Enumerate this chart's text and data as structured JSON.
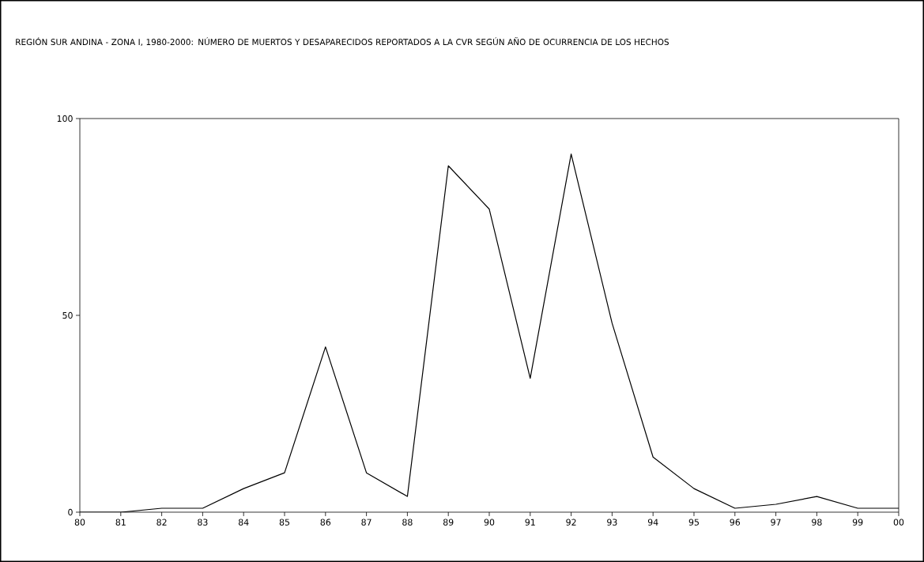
{
  "chart_data": {
    "type": "line",
    "title": "REGIÓN SUR ANDINA - ZONA I, 1980-2000: NÚMERO DE MUERTOS Y DESAPARECIDOS REPORTADOS A LA CVR SEGÚN AÑO DE OCURRENCIA DE LOS HECHOS",
    "categories": [
      "80",
      "81",
      "82",
      "83",
      "84",
      "85",
      "86",
      "87",
      "88",
      "89",
      "90",
      "91",
      "92",
      "93",
      "94",
      "95",
      "96",
      "97",
      "98",
      "99",
      "00"
    ],
    "series": [
      {
        "color": "#000000",
        "values": [
          0,
          0,
          1,
          1,
          6,
          10,
          42,
          10,
          4,
          88,
          77,
          34,
          91,
          48,
          14,
          6,
          1,
          2,
          4,
          1,
          1
        ]
      }
    ],
    "ylim": [
      0,
      100
    ],
    "yticks": [
      0,
      50,
      100
    ],
    "grid": false,
    "marker": "none",
    "line_style": "solid"
  }
}
